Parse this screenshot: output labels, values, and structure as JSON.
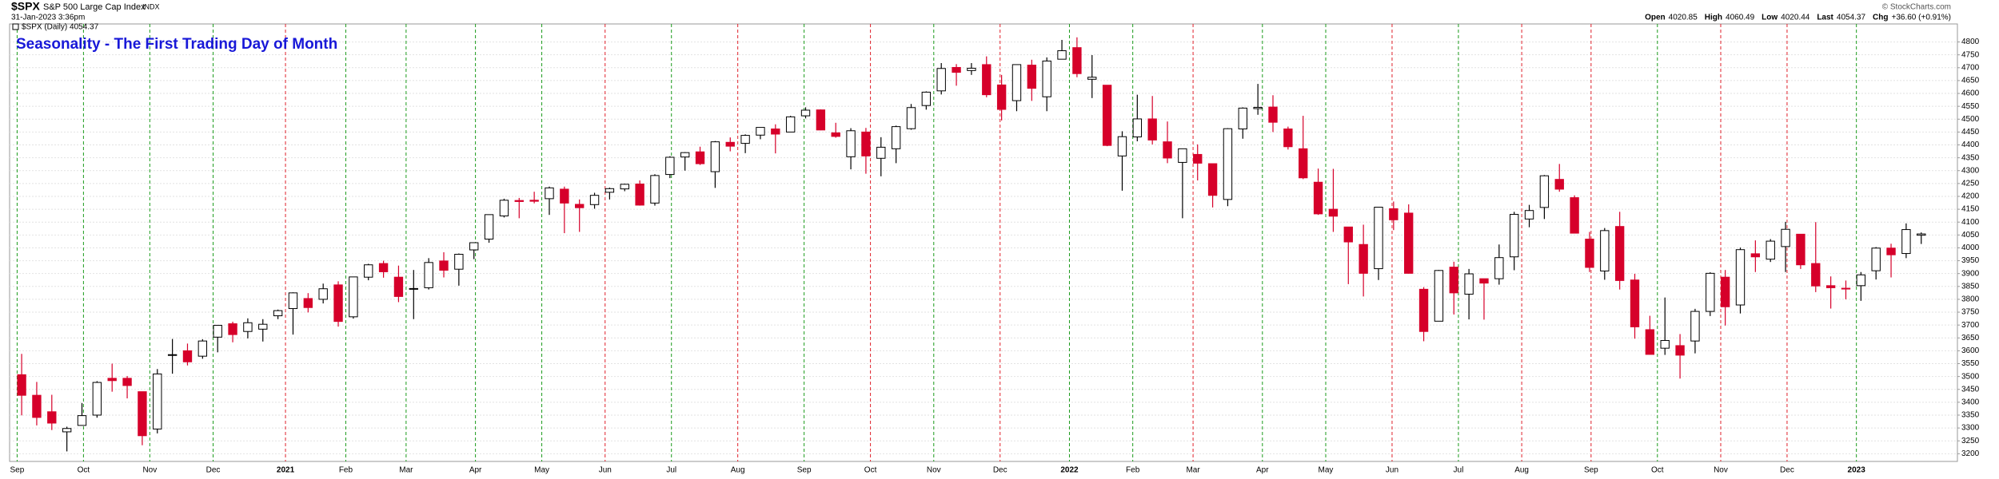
{
  "header": {
    "symbol": "$SPX",
    "name": "S&P 500 Large Cap Index",
    "exchange": "INDX",
    "timestamp": "31-Jan-2023 3:36pm",
    "quote": [
      {
        "label": "Open",
        "value": "4020.85"
      },
      {
        "label": "High",
        "value": "4060.49"
      },
      {
        "label": "Low",
        "value": "4020.44"
      },
      {
        "label": "Last",
        "value": "4054.37"
      },
      {
        "label": "Chg",
        "value": "+36.60 (+0.91%)"
      }
    ],
    "copyright": "© StockCharts.com"
  },
  "chart_data": {
    "type": "candlestick",
    "title": "Seasonality - The First Trading Day of Month",
    "legend": "$SPX (Daily) 4054.37",
    "up_color": "#ffffff",
    "down_color": "#d6002a",
    "grid": true,
    "ylim": [
      3170,
      4870
    ],
    "xlim": [
      -0.8,
      128.4
    ],
    "yticks": [
      3200,
      3250,
      3300,
      3350,
      3400,
      3450,
      3500,
      3550,
      3600,
      3650,
      3700,
      3750,
      3800,
      3850,
      3900,
      3950,
      4000,
      4050,
      4100,
      4150,
      4200,
      4250,
      4300,
      4350,
      4400,
      4450,
      4500,
      4550,
      4600,
      4650,
      4700,
      4750,
      4800
    ],
    "xticks": [
      {
        "value": -0.3,
        "label": "Sep",
        "color": "#1a9a1a"
      },
      {
        "value": 4.1,
        "label": "Oct",
        "color": "#1a9a1a"
      },
      {
        "value": 8.5,
        "label": "Nov",
        "color": "#1a9a1a"
      },
      {
        "value": 12.7,
        "label": "Dec",
        "color": "#1a9a1a"
      },
      {
        "value": 17.5,
        "label": "2021",
        "color": "#e0202a"
      },
      {
        "value": 21.5,
        "label": "Feb",
        "color": "#1a9a1a"
      },
      {
        "value": 25.5,
        "label": "Mar",
        "color": "#1a9a1a"
      },
      {
        "value": 30.1,
        "label": "Apr",
        "color": "#1a9a1a"
      },
      {
        "value": 34.5,
        "label": "May",
        "color": "#1a9a1a"
      },
      {
        "value": 38.7,
        "label": "Jun",
        "color": "#e0202a"
      },
      {
        "value": 43.1,
        "label": "Jul",
        "color": "#1a9a1a"
      },
      {
        "value": 47.5,
        "label": "Aug",
        "color": "#e0202a"
      },
      {
        "value": 51.9,
        "label": "Sep",
        "color": "#1a9a1a"
      },
      {
        "value": 56.3,
        "label": "Oct",
        "color": "#e0202a"
      },
      {
        "value": 60.5,
        "label": "Nov",
        "color": "#1a9a1a"
      },
      {
        "value": 64.9,
        "label": "Dec",
        "color": "#e0202a"
      },
      {
        "value": 69.5,
        "label": "2022",
        "color": "#1a9a1a"
      },
      {
        "value": 73.7,
        "label": "Feb",
        "color": "#1a9a1a"
      },
      {
        "value": 77.7,
        "label": "Mar",
        "color": "#e0202a"
      },
      {
        "value": 82.3,
        "label": "Apr",
        "color": "#1a9a1a"
      },
      {
        "value": 86.5,
        "label": "May",
        "color": "#1a9a1a"
      },
      {
        "value": 90.9,
        "label": "Jun",
        "color": "#e0202a"
      },
      {
        "value": 95.3,
        "label": "Jul",
        "color": "#1a9a1a"
      },
      {
        "value": 99.5,
        "label": "Aug",
        "color": "#e0202a"
      },
      {
        "value": 104.1,
        "label": "Sep",
        "color": "#e0202a"
      },
      {
        "value": 108.5,
        "label": "Oct",
        "color": "#1a9a1a"
      },
      {
        "value": 112.7,
        "label": "Nov",
        "color": "#e0202a"
      },
      {
        "value": 117.1,
        "label": "Dec",
        "color": "#e0202a"
      },
      {
        "value": 121.7,
        "label": "2023",
        "color": "#1a9a1a"
      }
    ],
    "ohlc": [
      [
        3507,
        3588,
        3349,
        3427
      ],
      [
        3427,
        3479,
        3310,
        3341
      ],
      [
        3363,
        3429,
        3292,
        3319
      ],
      [
        3285,
        3305,
        3209,
        3298
      ],
      [
        3310,
        3397,
        3324,
        3348
      ],
      [
        3350,
        3482,
        3340,
        3477
      ],
      [
        3493,
        3550,
        3441,
        3484
      ],
      [
        3493,
        3502,
        3415,
        3465
      ],
      [
        3441,
        3441,
        3233,
        3270
      ],
      [
        3296,
        3529,
        3279,
        3510
      ],
      [
        3584,
        3646,
        3511,
        3585
      ],
      [
        3600,
        3628,
        3543,
        3557
      ],
      [
        3579,
        3645,
        3569,
        3638
      ],
      [
        3653,
        3700,
        3594,
        3699
      ],
      [
        3705,
        3713,
        3633,
        3663
      ],
      [
        3675,
        3726,
        3648,
        3709
      ],
      [
        3684,
        3723,
        3636,
        3703
      ],
      [
        3736,
        3760,
        3723,
        3756
      ],
      [
        3764,
        3827,
        3663,
        3825
      ],
      [
        3803,
        3824,
        3749,
        3768
      ],
      [
        3800,
        3861,
        3784,
        3841
      ],
      [
        3856,
        3870,
        3694,
        3714
      ],
      [
        3732,
        3888,
        3725,
        3887
      ],
      [
        3886,
        3938,
        3874,
        3934
      ],
      [
        3939,
        3950,
        3884,
        3907
      ],
      [
        3886,
        3931,
        3789,
        3811
      ],
      [
        3842,
        3914,
        3723,
        3842
      ],
      [
        3845,
        3960,
        3838,
        3943
      ],
      [
        3949,
        3983,
        3885,
        3913
      ],
      [
        3917,
        3978,
        3853,
        3975
      ],
      [
        3992,
        4020,
        3956,
        4020
      ],
      [
        4034,
        4129,
        4020,
        4129
      ],
      [
        4124,
        4191,
        4118,
        4185
      ],
      [
        4184,
        4194,
        4115,
        4180
      ],
      [
        4185,
        4218,
        4173,
        4181
      ],
      [
        4191,
        4238,
        4128,
        4233
      ],
      [
        4228,
        4238,
        4057,
        4174
      ],
      [
        4169,
        4188,
        4062,
        4156
      ],
      [
        4168,
        4214,
        4152,
        4204
      ],
      [
        4216,
        4234,
        4188,
        4230
      ],
      [
        4229,
        4249,
        4220,
        4247
      ],
      [
        4248,
        4262,
        4164,
        4166
      ],
      [
        4174,
        4286,
        4164,
        4281
      ],
      [
        4285,
        4356,
        4271,
        4352
      ],
      [
        4353,
        4372,
        4300,
        4370
      ],
      [
        4373,
        4393,
        4322,
        4327
      ],
      [
        4296,
        4415,
        4233,
        4412
      ],
      [
        4410,
        4429,
        4375,
        4395
      ],
      [
        4406,
        4441,
        4368,
        4437
      ],
      [
        4438,
        4468,
        4422,
        4468
      ],
      [
        4462,
        4480,
        4367,
        4442
      ],
      [
        4450,
        4513,
        4450,
        4509
      ],
      [
        4513,
        4546,
        4503,
        4535
      ],
      [
        4536,
        4538,
        4457,
        4458
      ],
      [
        4447,
        4486,
        4428,
        4433
      ],
      [
        4354,
        4465,
        4305,
        4455
      ],
      [
        4450,
        4466,
        4288,
        4357
      ],
      [
        4348,
        4430,
        4278,
        4391
      ],
      [
        4385,
        4475,
        4329,
        4471
      ],
      [
        4463,
        4559,
        4459,
        4545
      ],
      [
        4553,
        4608,
        4537,
        4605
      ],
      [
        4610,
        4718,
        4596,
        4697
      ],
      [
        4701,
        4714,
        4630,
        4682
      ],
      [
        4689,
        4718,
        4672,
        4698
      ],
      [
        4712,
        4744,
        4585,
        4595
      ],
      [
        4633,
        4672,
        4495,
        4538
      ],
      [
        4572,
        4713,
        4531,
        4712
      ],
      [
        4710,
        4731,
        4571,
        4620
      ],
      [
        4587,
        4740,
        4531,
        4726
      ],
      [
        4733,
        4808,
        4733,
        4766
      ],
      [
        4778,
        4818,
        4663,
        4677
      ],
      [
        4655,
        4749,
        4582,
        4663
      ],
      [
        4632,
        4632,
        4395,
        4398
      ],
      [
        4357,
        4453,
        4222,
        4432
      ],
      [
        4431,
        4595,
        4414,
        4501
      ],
      [
        4501,
        4590,
        4402,
        4419
      ],
      [
        4412,
        4491,
        4329,
        4349
      ],
      [
        4332,
        4385,
        4115,
        4385
      ],
      [
        4363,
        4402,
        4262,
        4329
      ],
      [
        4327,
        4327,
        4157,
        4204
      ],
      [
        4188,
        4465,
        4162,
        4463
      ],
      [
        4462,
        4546,
        4424,
        4543
      ],
      [
        4541,
        4637,
        4517,
        4546
      ],
      [
        4547,
        4593,
        4450,
        4488
      ],
      [
        4462,
        4471,
        4382,
        4393
      ],
      [
        4385,
        4513,
        4267,
        4272
      ],
      [
        4255,
        4308,
        4128,
        4132
      ],
      [
        4150,
        4307,
        4062,
        4123
      ],
      [
        4081,
        4081,
        3859,
        4023
      ],
      [
        4013,
        4090,
        3811,
        3901
      ],
      [
        3919,
        4158,
        3875,
        4158
      ],
      [
        4152,
        4180,
        4069,
        4109
      ],
      [
        4135,
        4169,
        3900,
        3901
      ],
      [
        3839,
        3847,
        3637,
        3675
      ],
      [
        3715,
        3914,
        3715,
        3912
      ],
      [
        3925,
        3946,
        3741,
        3825
      ],
      [
        3820,
        3918,
        3722,
        3899
      ],
      [
        3880,
        3880,
        3721,
        3863
      ],
      [
        3880,
        4013,
        3857,
        3962
      ],
      [
        3965,
        4140,
        3913,
        4130
      ],
      [
        4112,
        4167,
        4080,
        4145
      ],
      [
        4157,
        4283,
        4112,
        4280
      ],
      [
        4266,
        4326,
        4218,
        4228
      ],
      [
        4195,
        4204,
        4057,
        4057
      ],
      [
        4034,
        4062,
        3906,
        3924
      ],
      [
        3910,
        4077,
        3876,
        4067
      ],
      [
        4083,
        4140,
        3838,
        3873
      ],
      [
        3875,
        3899,
        3647,
        3693
      ],
      [
        3682,
        3736,
        3585,
        3586
      ],
      [
        3610,
        3807,
        3584,
        3640
      ],
      [
        3620,
        3665,
        3492,
        3583
      ],
      [
        3638,
        3763,
        3590,
        3753
      ],
      [
        3753,
        3905,
        3735,
        3901
      ],
      [
        3886,
        3914,
        3698,
        3771
      ],
      [
        3778,
        4001,
        3745,
        3993
      ],
      [
        3977,
        4029,
        3906,
        3965
      ],
      [
        3956,
        4034,
        3945,
        4026
      ],
      [
        4005,
        4101,
        3906,
        4072
      ],
      [
        4053,
        4053,
        3918,
        3934
      ],
      [
        3939,
        4100,
        3828,
        3852
      ],
      [
        3853,
        3889,
        3764,
        3845
      ],
      [
        3843,
        3873,
        3800,
        3840
      ],
      [
        3853,
        3906,
        3794,
        3895
      ],
      [
        3911,
        4003,
        3877,
        3999
      ],
      [
        3999,
        4016,
        3885,
        3973
      ],
      [
        3978,
        4095,
        3960,
        4071
      ],
      [
        4049,
        4060,
        4015,
        4054
      ]
    ]
  }
}
